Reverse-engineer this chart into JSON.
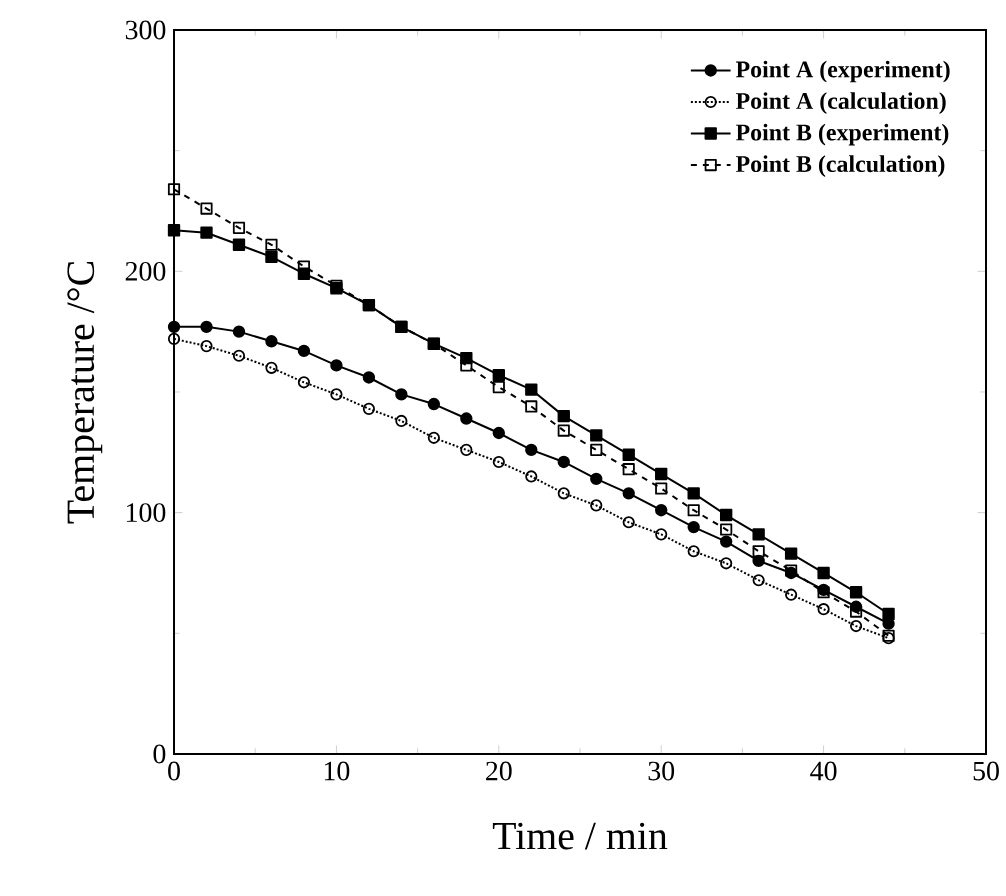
{
  "chart_data": {
    "type": "line",
    "xlabel": "Time / min",
    "ylabel": "Temperature /°C",
    "x": [
      0,
      2,
      4,
      6,
      8,
      10,
      12,
      14,
      16,
      18,
      20,
      22,
      24,
      26,
      28,
      30,
      32,
      34,
      36,
      38,
      40,
      42,
      44
    ],
    "xlim": [
      0,
      50
    ],
    "xticks": [
      0,
      10,
      20,
      30,
      40,
      50
    ],
    "ylim": [
      0,
      300
    ],
    "yticks": [
      0,
      100,
      200,
      300
    ],
    "grid": false,
    "legend": "top right",
    "series": [
      {
        "name": "Point A (experiment)",
        "color": "#000000",
        "marker": "circle",
        "line_style": "solid",
        "values": [
          177,
          177,
          175,
          171,
          167,
          161,
          156,
          149,
          145,
          139,
          133,
          126,
          121,
          114,
          108,
          101,
          94,
          88,
          80,
          75,
          68,
          61,
          54
        ]
      },
      {
        "name": "Point A (calculation)",
        "color": "#000000",
        "marker": "circle",
        "line_style": "dotted",
        "values": [
          172,
          169,
          165,
          160,
          154,
          149,
          143,
          138,
          131,
          126,
          121,
          115,
          108,
          103,
          96,
          91,
          84,
          79,
          72,
          66,
          60,
          53,
          48
        ]
      },
      {
        "name": "Point B (experiment)",
        "color": "#000000",
        "marker": "square",
        "line_style": "solid",
        "values": [
          217,
          216,
          211,
          206,
          199,
          193,
          186,
          177,
          170,
          164,
          157,
          151,
          140,
          132,
          124,
          116,
          108,
          99,
          91,
          83,
          75,
          67,
          58
        ]
      },
      {
        "name": "Point B (calculation)",
        "color": "#000000",
        "marker": "square",
        "line_style": "dashed",
        "values": [
          234,
          226,
          218,
          211,
          202,
          194,
          186,
          177,
          170,
          161,
          152,
          144,
          134,
          126,
          118,
          110,
          101,
          93,
          84,
          76,
          67,
          59,
          49
        ]
      }
    ]
  }
}
